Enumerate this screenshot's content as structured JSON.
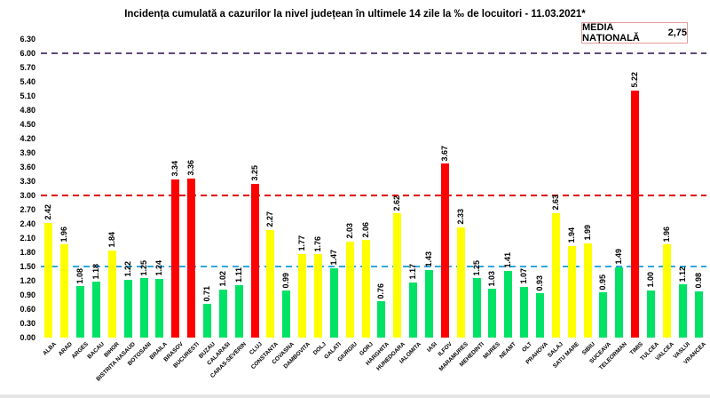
{
  "chart_data": {
    "type": "bar",
    "title": "Incidența cumulată a cazurilor la nivel județean în ultimele 14 zile la ‰ de locuitori - 11.03.2021*",
    "categories": [
      "ALBA",
      "ARAD",
      "ARGES",
      "BACAU",
      "BIHOR",
      "BISTRITA NASAUD",
      "BOTOSANI",
      "BRAILA",
      "BRASOV",
      "BUCURESTI",
      "BUZAU",
      "CALARASI",
      "CARAS-SEVERIN",
      "CLUJ",
      "CONSTANTA",
      "COVASNA",
      "DAMBOVITA",
      "DOLJ",
      "GALATI",
      "GIURGIU",
      "GORJ",
      "HARGHITA",
      "HUNEDOARA",
      "IALOMITA",
      "IASI",
      "ILFOV",
      "MARAMURES",
      "MEHEDINTI",
      "MURES",
      "NEAMT",
      "OLT",
      "PRAHOVA",
      "SALAJ",
      "SATU MARE",
      "SIBIU",
      "SUCEAVA",
      "TELEORMAN",
      "TIMIS",
      "TULCEA",
      "VALCEA",
      "VASLUI",
      "VRANCEA"
    ],
    "values": [
      2.42,
      1.96,
      1.08,
      1.18,
      1.84,
      1.22,
      1.25,
      1.24,
      3.34,
      3.36,
      0.71,
      1.02,
      1.11,
      3.25,
      2.27,
      0.99,
      1.77,
      1.76,
      1.47,
      2.03,
      2.06,
      0.76,
      2.62,
      1.17,
      1.43,
      3.67,
      2.33,
      1.25,
      1.03,
      1.41,
      1.07,
      0.93,
      2.63,
      1.94,
      1.99,
      0.95,
      1.49,
      5.22,
      1.0,
      1.96,
      1.12,
      0.98
    ],
    "bar_color_class": [
      "yellow",
      "yellow",
      "green",
      "green",
      "yellow",
      "green",
      "green",
      "green",
      "red",
      "red",
      "green",
      "green",
      "green",
      "red",
      "yellow",
      "green",
      "yellow",
      "yellow",
      "green",
      "yellow",
      "yellow",
      "green",
      "yellow",
      "green",
      "green",
      "red",
      "yellow",
      "green",
      "green",
      "green",
      "green",
      "green",
      "yellow",
      "yellow",
      "yellow",
      "green",
      "green",
      "red",
      "green",
      "yellow",
      "green",
      "green"
    ],
    "palette": {
      "green": "#00E266",
      "yellow": "#FFFF00",
      "red": "#FF0000"
    },
    "ylim": [
      0,
      6.3
    ],
    "ytick_step": 0.3,
    "grid": false,
    "legend": null,
    "thresholds": [
      {
        "value": 1.5,
        "color": "#2EA8E0"
      },
      {
        "value": 3.0,
        "color": "#E00000"
      },
      {
        "value": 6.0,
        "color": "#5F497A"
      }
    ],
    "annotation": {
      "label": "MEDIA NAȚIONALĂ",
      "value": "2,75"
    }
  }
}
